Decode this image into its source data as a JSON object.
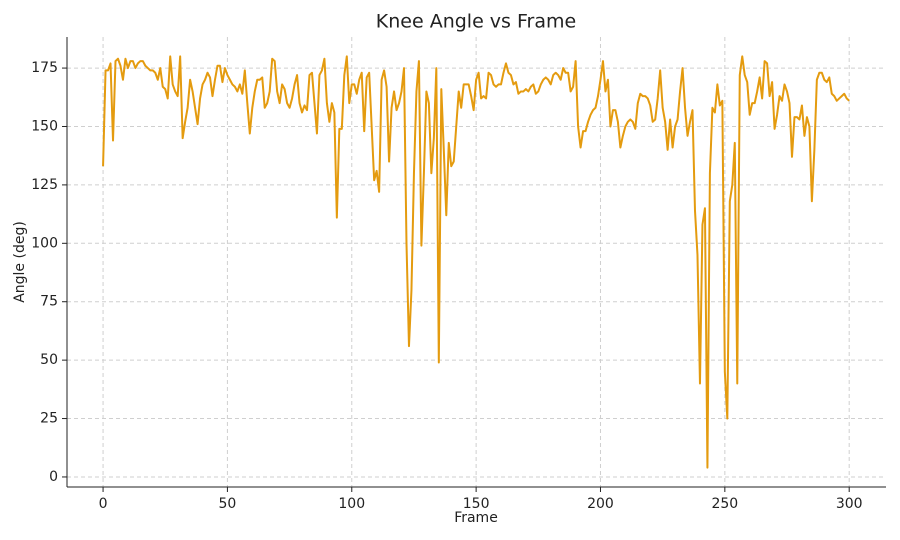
{
  "chart_data": {
    "type": "line",
    "title": "Knee Angle vs Frame",
    "x_label": "Frame",
    "y_label": "Angle (deg)",
    "color": "#e49b0f",
    "grid": true,
    "xlim": [
      -14.5,
      314.8
    ],
    "ylim": [
      -4.3,
      188.3
    ],
    "xticks": [
      0,
      50,
      100,
      150,
      200,
      250,
      300
    ],
    "yticks": [
      0,
      25,
      50,
      75,
      100,
      125,
      150,
      175
    ],
    "x": [
      0,
      1,
      2,
      3,
      4,
      5,
      6,
      7,
      8,
      9,
      10,
      11,
      12,
      13,
      14,
      15,
      16,
      17,
      18,
      19,
      20,
      21,
      22,
      23,
      24,
      25,
      26,
      27,
      28,
      29,
      30,
      31,
      32,
      33,
      34,
      35,
      36,
      37,
      38,
      39,
      40,
      41,
      42,
      43,
      44,
      45,
      46,
      47,
      48,
      49,
      50,
      51,
      52,
      53,
      54,
      55,
      56,
      57,
      58,
      59,
      60,
      61,
      62,
      63,
      64,
      65,
      66,
      67,
      68,
      69,
      70,
      71,
      72,
      73,
      74,
      75,
      76,
      77,
      78,
      79,
      80,
      81,
      82,
      83,
      84,
      85,
      86,
      87,
      88,
      89,
      90,
      91,
      92,
      93,
      94,
      95,
      96,
      97,
      98,
      99,
      100,
      101,
      102,
      103,
      104,
      105,
      106,
      107,
      108,
      109,
      110,
      111,
      112,
      113,
      114,
      115,
      116,
      117,
      118,
      119,
      120,
      121,
      122,
      123,
      124,
      125,
      126,
      127,
      128,
      129,
      130,
      131,
      132,
      133,
      134,
      135,
      136,
      137,
      138,
      139,
      140,
      141,
      142,
      143,
      144,
      145,
      146,
      147,
      148,
      149,
      150,
      151,
      152,
      153,
      154,
      155,
      156,
      157,
      158,
      159,
      160,
      161,
      162,
      163,
      164,
      165,
      166,
      167,
      168,
      169,
      170,
      171,
      172,
      173,
      174,
      175,
      176,
      177,
      178,
      179,
      180,
      181,
      182,
      183,
      184,
      185,
      186,
      187,
      188,
      189,
      190,
      191,
      192,
      193,
      194,
      195,
      196,
      197,
      198,
      199,
      200,
      201,
      202,
      203,
      204,
      205,
      206,
      207,
      208,
      209,
      210,
      211,
      212,
      213,
      214,
      215,
      216,
      217,
      218,
      219,
      220,
      221,
      222,
      223,
      224,
      225,
      226,
      227,
      228,
      229,
      230,
      231,
      232,
      233,
      234,
      235,
      236,
      237,
      238,
      239,
      240,
      241,
      242,
      243,
      244,
      245,
      246,
      247,
      248,
      249,
      250,
      251,
      252,
      253,
      254,
      255,
      256,
      257,
      258,
      259,
      260,
      261,
      262,
      263,
      264,
      265,
      266,
      267,
      268,
      269,
      270,
      271,
      272,
      273,
      274,
      275,
      276,
      277,
      278,
      279,
      280,
      281,
      282,
      283,
      284,
      285,
      286,
      287,
      288,
      289,
      290,
      291,
      292,
      293,
      294,
      295,
      296,
      297,
      298,
      299,
      300
    ],
    "values": [
      133,
      174,
      174,
      177,
      144,
      178,
      179,
      176,
      170,
      179,
      175,
      178,
      178,
      175,
      177,
      178,
      178,
      176,
      175,
      174,
      174,
      173,
      170,
      175,
      167,
      166,
      162,
      180,
      168,
      165,
      163,
      180,
      145,
      152,
      158,
      170,
      165,
      158,
      151,
      162,
      168,
      170,
      173,
      171,
      163,
      170,
      176,
      176,
      169,
      175,
      172,
      170,
      168,
      167,
      165,
      168,
      164,
      174,
      160,
      147,
      158,
      165,
      170,
      170,
      171,
      158,
      160,
      165,
      179,
      178,
      165,
      160,
      168,
      166,
      160,
      158,
      162,
      168,
      172,
      160,
      156,
      159,
      157,
      172,
      173,
      160,
      147,
      172,
      174,
      179,
      160,
      152,
      160,
      156,
      111,
      149,
      149,
      172,
      180,
      160,
      168,
      168,
      164,
      170,
      173,
      148,
      171,
      173,
      150,
      127,
      131,
      122,
      170,
      174,
      167,
      135,
      158,
      165,
      157,
      160,
      165,
      175,
      100,
      56,
      80,
      130,
      165,
      178,
      99,
      130,
      165,
      160,
      130,
      145,
      175,
      49,
      166,
      140,
      112,
      143,
      133,
      135,
      150,
      165,
      158,
      168,
      168,
      168,
      163,
      157,
      170,
      173,
      162,
      163,
      162,
      173,
      172,
      168,
      167,
      168,
      168,
      173,
      177,
      173,
      172,
      168,
      169,
      164,
      165,
      165,
      166,
      165,
      167,
      168,
      164,
      165,
      168,
      170,
      171,
      170,
      168,
      172,
      173,
      172,
      170,
      175,
      173,
      173,
      165,
      167,
      178,
      150,
      141,
      148,
      148,
      152,
      155,
      157,
      158,
      163,
      170,
      178,
      165,
      170,
      150,
      157,
      157,
      152,
      141,
      146,
      150,
      152,
      153,
      152,
      149,
      160,
      164,
      163,
      163,
      162,
      159,
      152,
      153,
      162,
      174,
      158,
      152,
      140,
      153,
      141,
      150,
      153,
      165,
      175,
      158,
      146,
      152,
      157,
      114,
      95,
      40,
      108,
      115,
      4,
      130,
      158,
      156,
      168,
      159,
      161,
      45,
      25,
      118,
      125,
      143,
      40,
      172,
      180,
      172,
      169,
      155,
      160,
      160,
      165,
      171,
      162,
      178,
      177,
      163,
      169,
      149,
      155,
      163,
      161,
      168,
      165,
      160,
      137,
      154,
      154,
      153,
      159,
      146,
      154,
      150,
      118,
      140,
      170,
      173,
      173,
      170,
      169,
      171,
      164,
      163,
      161,
      162,
      163,
      164,
      162,
      161
    ]
  }
}
